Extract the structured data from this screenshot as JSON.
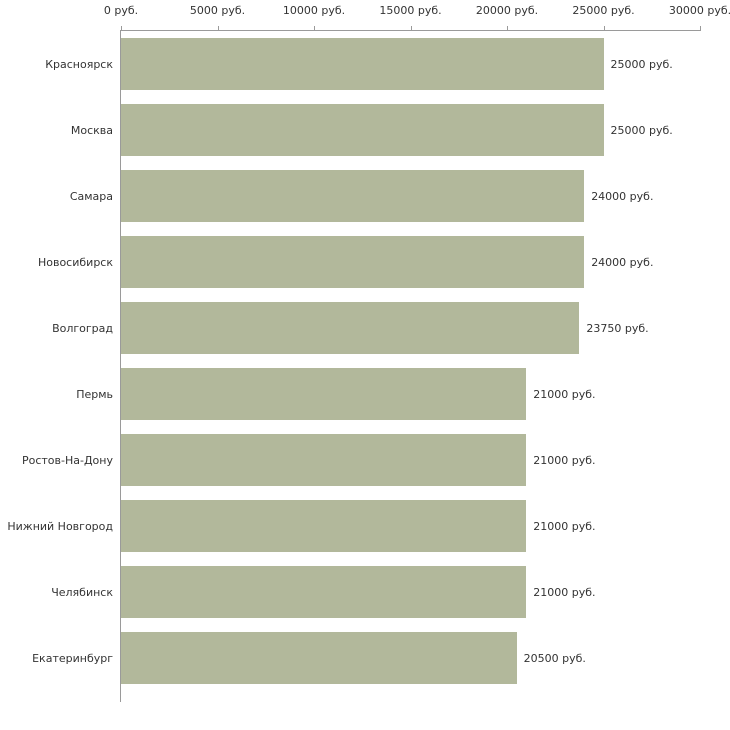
{
  "chart_data": {
    "type": "bar",
    "orientation": "horizontal",
    "title": "",
    "xlabel": "",
    "ylabel": "",
    "xlim": [
      0,
      30000
    ],
    "grid": false,
    "legend": "none",
    "categories": [
      "Красноярск",
      "Москва",
      "Самара",
      "Новосибирск",
      "Волгоград",
      "Пермь",
      "Ростов-На-Дону",
      "Нижний Новгород",
      "Челябинск",
      "Екатеринбург"
    ],
    "values": [
      25000,
      25000,
      24000,
      24000,
      23750,
      21000,
      21000,
      21000,
      21000,
      20500
    ],
    "value_labels": [
      "25000 руб.",
      "25000 руб.",
      "24000 руб.",
      "24000 руб.",
      "23750 руб.",
      "21000 руб.",
      "21000 руб.",
      "21000 руб.",
      "21000 руб.",
      "20500 руб."
    ],
    "x_ticks": [
      0,
      5000,
      10000,
      15000,
      20000,
      25000,
      30000
    ],
    "x_tick_labels": [
      "0 руб.",
      "5000 руб.",
      "10000 руб.",
      "15000 руб.",
      "20000 руб.",
      "25000 руб.",
      "30000 руб."
    ],
    "colors": {
      "bar": "#b2b89b",
      "axis": "#9a9a9a",
      "text": "#333333",
      "background": "#ffffff"
    }
  }
}
